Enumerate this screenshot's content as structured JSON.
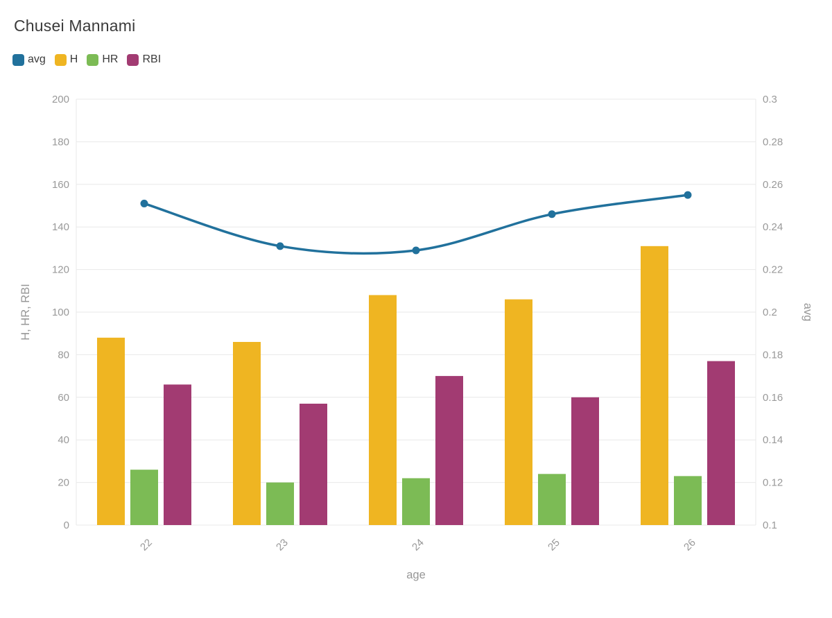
{
  "title": "Chusei Mannami",
  "chart_data": {
    "type": "bar",
    "subtype": "bar-line-combo",
    "title": "Chusei Mannami",
    "xlabel": "age",
    "categories": [
      "22",
      "23",
      "24",
      "25",
      "26"
    ],
    "axes": {
      "left": {
        "label": "H, HR, RBI",
        "min": 0,
        "max": 200,
        "ticks": [
          0,
          20,
          40,
          60,
          80,
          100,
          120,
          140,
          160,
          180,
          200
        ]
      },
      "right": {
        "label": "avg",
        "min": 0.1,
        "max": 0.3,
        "tick_labels": [
          "0.1",
          "0.12",
          "0.14",
          "0.16",
          "0.18",
          "0.2",
          "0.22",
          "0.24",
          "0.26",
          "0.28",
          "0.3"
        ]
      }
    },
    "series": [
      {
        "name": "avg",
        "kind": "line",
        "axis": "right",
        "color": "#21719c",
        "values": [
          0.251,
          0.231,
          0.229,
          0.246,
          0.255
        ]
      },
      {
        "name": "H",
        "kind": "bar",
        "axis": "left",
        "color": "#efb522",
        "values": [
          88,
          86,
          108,
          106,
          131
        ]
      },
      {
        "name": "HR",
        "kind": "bar",
        "axis": "left",
        "color": "#7cbb55",
        "values": [
          26,
          20,
          22,
          24,
          23
        ]
      },
      {
        "name": "RBI",
        "kind": "bar",
        "axis": "left",
        "color": "#a23b72",
        "values": [
          66,
          57,
          70,
          60,
          77
        ]
      }
    ],
    "grid": true,
    "legend_position": "top-left",
    "colors": {
      "grid": "#e8e8e8",
      "tick_text": "#999999",
      "axis_title": "#979797",
      "title_text": "#3b3b3b"
    }
  }
}
